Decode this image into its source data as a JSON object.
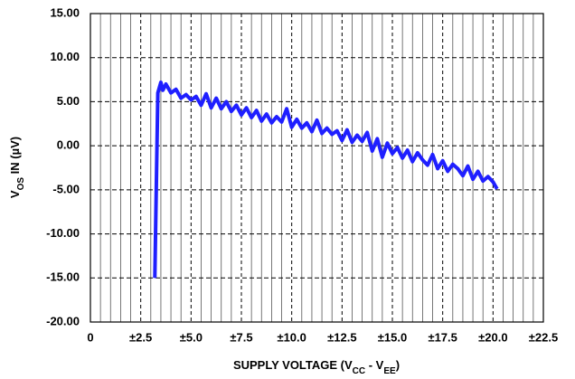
{
  "chart_data": {
    "type": "line",
    "ylabel_parts": [
      "V",
      "OS",
      " IN (µV)"
    ],
    "xlabel_parts": [
      "SUPPLY VOLTAGE (V",
      "CC",
      " - V",
      "EE",
      ")"
    ],
    "xlim": [
      0,
      22.5
    ],
    "ylim": [
      -20,
      15
    ],
    "xticks": [
      0,
      {
        "value": 2.5,
        "label": "±2.5"
      },
      {
        "value": 5,
        "label": "±5.0"
      },
      {
        "value": 7.5,
        "label": "±7.5"
      },
      {
        "value": 10,
        "label": "±10.0"
      },
      {
        "value": 12.5,
        "label": "±12.5"
      },
      {
        "value": 15,
        "label": "±15.0"
      },
      {
        "value": 17.5,
        "label": "±17.5"
      },
      {
        "value": 20,
        "label": "±20.0"
      },
      {
        "value": 22.5,
        "label": "±22.5"
      }
    ],
    "minor_xticks": [
      0.5,
      1,
      1.5,
      2,
      3,
      3.5,
      4,
      4.5,
      5.5,
      6,
      6.5,
      7,
      8,
      8.5,
      9,
      9.5,
      10.5,
      11,
      11.5,
      12,
      13,
      13.5,
      14,
      14.5,
      15.5,
      16,
      16.5,
      17,
      18,
      18.5,
      19,
      19.5,
      20.5,
      21,
      21.5,
      22
    ],
    "yticks": [
      {
        "value": -20,
        "label": "-20.00"
      },
      {
        "value": -15,
        "label": "-15.00"
      },
      {
        "value": -10,
        "label": "-10.00"
      },
      {
        "value": -5,
        "label": "-5.00"
      },
      {
        "value": 0,
        "label": "0.00"
      },
      {
        "value": 5,
        "label": "5.00"
      },
      {
        "value": 10,
        "label": "10.00"
      },
      {
        "value": 15,
        "label": "15.00"
      }
    ],
    "grid": true,
    "color": "#1f1fff",
    "x": [
      3.2,
      3.35,
      3.5,
      3.6,
      3.75,
      4.0,
      4.25,
      4.5,
      4.75,
      5.0,
      5.25,
      5.5,
      5.75,
      6.0,
      6.25,
      6.5,
      6.75,
      7.0,
      7.25,
      7.5,
      7.75,
      8.0,
      8.25,
      8.5,
      8.75,
      9.0,
      9.25,
      9.5,
      9.75,
      10.0,
      10.25,
      10.5,
      10.75,
      11.0,
      11.25,
      11.5,
      11.75,
      12.0,
      12.25,
      12.5,
      12.75,
      13.0,
      13.25,
      13.5,
      13.75,
      14.0,
      14.25,
      14.5,
      14.75,
      15.0,
      15.25,
      15.5,
      15.75,
      16.0,
      16.25,
      16.5,
      16.75,
      17.0,
      17.25,
      17.5,
      17.75,
      18.0,
      18.25,
      18.5,
      18.75,
      19.0,
      19.25,
      19.5,
      19.75,
      20.0,
      20.2
    ],
    "values": [
      -15,
      6,
      7.2,
      6.3,
      7,
      6,
      6.4,
      5.4,
      5.8,
      5.2,
      5.6,
      4.6,
      5.9,
      4.3,
      5.4,
      4.2,
      5.0,
      3.9,
      4.6,
      3.5,
      4.3,
      3.2,
      4.0,
      2.8,
      3.6,
      2.6,
      3.3,
      2.7,
      4.2,
      2.1,
      3.0,
      2.0,
      2.6,
      1.6,
      2.9,
      1.4,
      2.0,
      1.3,
      1.7,
      0.6,
      1.8,
      0.4,
      1.2,
      0.5,
      1.5,
      -0.6,
      0.8,
      -1.3,
      0.3,
      -0.9,
      -0.2,
      -1.4,
      -0.5,
      -1.8,
      -0.8,
      -1.6,
      -2.2,
      -1.0,
      -2.6,
      -1.7,
      -2.9,
      -2.1,
      -2.6,
      -3.4,
      -2.3,
      -3.8,
      -2.9,
      -4.0,
      -3.5,
      -4.1,
      -4.9
    ]
  }
}
